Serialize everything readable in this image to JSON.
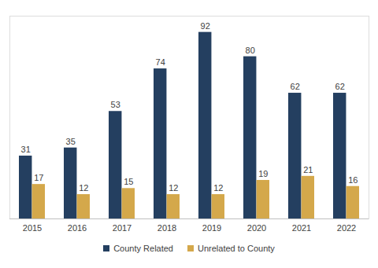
{
  "chart_data": {
    "type": "bar",
    "categories": [
      "2015",
      "2016",
      "2017",
      "2018",
      "2019",
      "2020",
      "2021",
      "2022"
    ],
    "series": [
      {
        "name": "County Related",
        "color": "#243f60",
        "values": [
          31,
          35,
          53,
          74,
          92,
          80,
          62,
          62
        ]
      },
      {
        "name": "Unrelated to County",
        "color": "#d4a84b",
        "values": [
          17,
          12,
          15,
          12,
          12,
          19,
          21,
          16
        ]
      }
    ],
    "ylim": [
      0,
      100
    ],
    "data_labels": true,
    "tick_labels": "x",
    "legend": "bottom",
    "grid": false
  }
}
